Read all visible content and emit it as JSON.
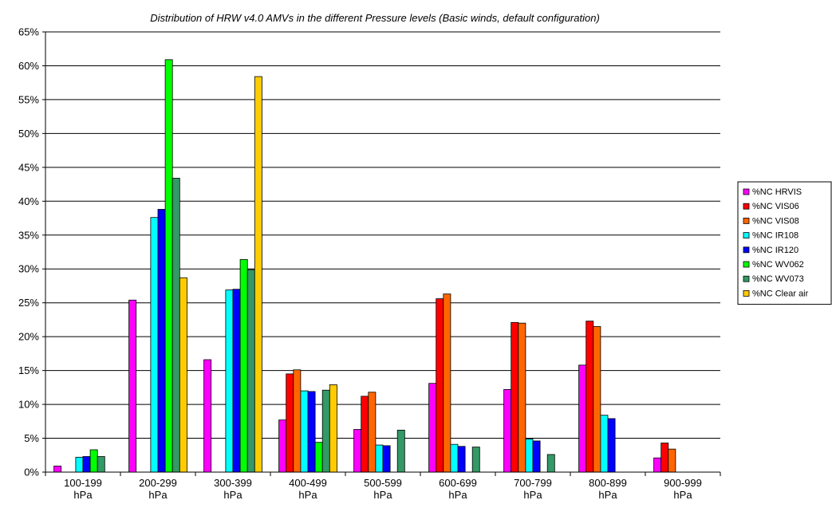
{
  "chart_data": {
    "type": "bar",
    "title": "Distribution of HRW v4.0 AMVs in the different Pressure levels (Basic winds, default configuration)",
    "xlabel": "",
    "ylabel": "",
    "ylim": [
      0,
      65
    ],
    "yticks": [
      "0%",
      "5%",
      "10%",
      "15%",
      "20%",
      "25%",
      "30%",
      "35%",
      "40%",
      "45%",
      "50%",
      "55%",
      "60%",
      "65%"
    ],
    "grid": true,
    "legend_position": "right",
    "categories": [
      [
        "100-199",
        "hPa"
      ],
      [
        "200-299",
        "hPa"
      ],
      [
        "300-399",
        "hPa"
      ],
      [
        "400-499",
        "hPa"
      ],
      [
        "500-599",
        "hPa"
      ],
      [
        "600-699",
        "hPa"
      ],
      [
        "700-799",
        "hPa"
      ],
      [
        "800-899",
        "hPa"
      ],
      [
        "900-999",
        "hPa"
      ]
    ],
    "series": [
      {
        "name": "%NC HRVIS",
        "color": "#ff00ff",
        "values": [
          0.9,
          25.4,
          16.6,
          7.7,
          6.3,
          13.1,
          12.2,
          15.8,
          2.1
        ]
      },
      {
        "name": "%NC VIS06",
        "color": "#ff0000",
        "values": [
          0,
          0,
          0,
          14.5,
          11.2,
          25.6,
          22.1,
          22.3,
          4.3
        ]
      },
      {
        "name": "%NC VIS08",
        "color": "#ff6600",
        "values": [
          0,
          0,
          0,
          15.1,
          11.8,
          26.3,
          22.0,
          21.5,
          3.4
        ]
      },
      {
        "name": "%NC IR108",
        "color": "#00ffff",
        "values": [
          2.2,
          37.6,
          26.9,
          12.0,
          4.0,
          4.1,
          4.9,
          8.4,
          0
        ]
      },
      {
        "name": "%NC IR120",
        "color": "#0000ff",
        "values": [
          2.3,
          38.8,
          27.0,
          11.9,
          3.9,
          3.8,
          4.6,
          7.9,
          0
        ]
      },
      {
        "name": "%NC WV062",
        "color": "#00ff00",
        "values": [
          3.3,
          60.9,
          31.4,
          4.4,
          0,
          0,
          0,
          0,
          0
        ]
      },
      {
        "name": "%NC WV073",
        "color": "#339966",
        "values": [
          2.3,
          43.4,
          29.9,
          12.1,
          6.2,
          3.7,
          2.6,
          0,
          0
        ]
      },
      {
        "name": "%NC Clear air",
        "color": "#ffcc00",
        "values": [
          0,
          28.7,
          58.4,
          12.9,
          0,
          0,
          0,
          0,
          0
        ]
      }
    ]
  }
}
